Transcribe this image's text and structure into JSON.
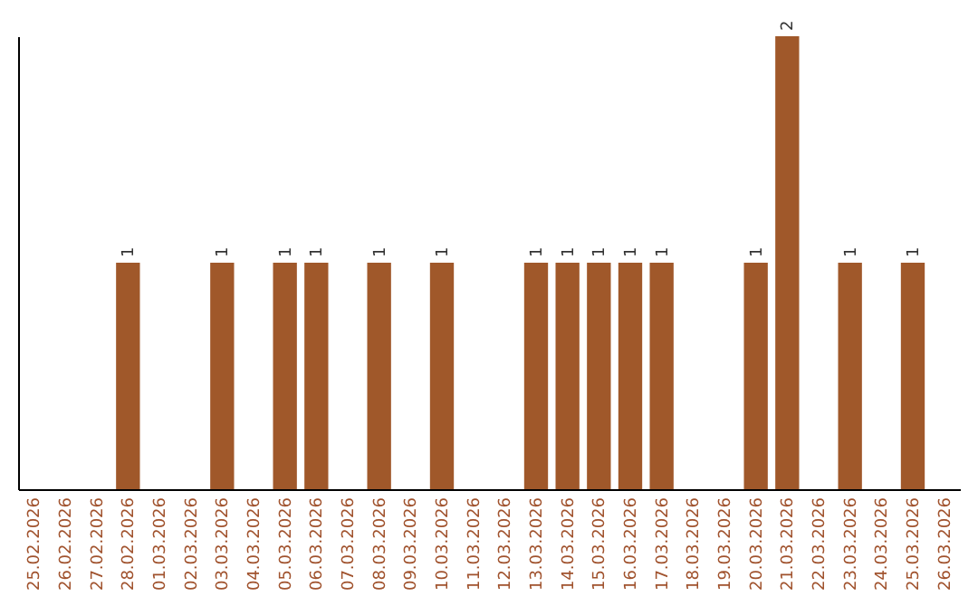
{
  "chart_data": {
    "type": "bar",
    "categories": [
      "25.02.2026",
      "26.02.2026",
      "27.02.2026",
      "28.02.2026",
      "01.03.2026",
      "02.03.2026",
      "03.03.2026",
      "04.03.2026",
      "05.03.2026",
      "06.03.2026",
      "07.03.2026",
      "08.03.2026",
      "09.03.2026",
      "10.03.2026",
      "11.03.2026",
      "12.03.2026",
      "13.03.2026",
      "14.03.2026",
      "15.03.2026",
      "16.03.2026",
      "17.03.2026",
      "18.03.2026",
      "19.03.2026",
      "20.03.2026",
      "21.03.2026",
      "22.03.2026",
      "23.03.2026",
      "24.03.2026",
      "25.03.2026",
      "26.03.2026"
    ],
    "values": [
      0,
      0,
      0,
      1,
      0,
      0,
      1,
      0,
      1,
      1,
      0,
      1,
      0,
      1,
      0,
      0,
      1,
      1,
      1,
      1,
      1,
      0,
      0,
      1,
      2,
      0,
      1,
      0,
      1,
      0
    ],
    "value_labels": [
      null,
      null,
      null,
      "1",
      null,
      null,
      "1",
      null,
      "1",
      "1",
      null,
      "1",
      null,
      "1",
      null,
      null,
      "1",
      "1",
      "1",
      "1",
      "1",
      null,
      null,
      "1",
      "2",
      null,
      "1",
      null,
      "1",
      null
    ],
    "color": "#a0582a",
    "tick_labels": "x"
  }
}
